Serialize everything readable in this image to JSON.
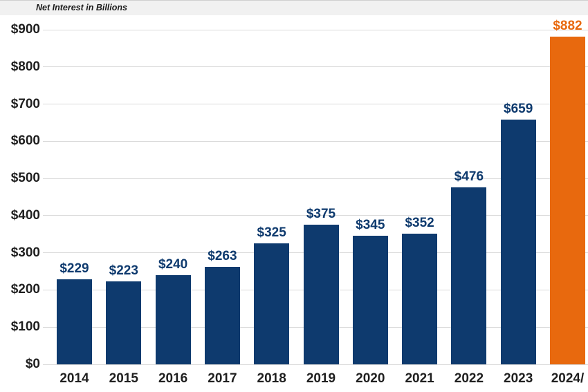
{
  "chart": {
    "title": "Net Interest in Billions"
  },
  "chart_data": {
    "type": "bar",
    "title": "Net Interest in Billions",
    "categories": [
      "2014",
      "2015",
      "2016",
      "2017",
      "2018",
      "2019",
      "2020",
      "2021",
      "2022",
      "2023",
      "2024/"
    ],
    "values": [
      229,
      223,
      240,
      263,
      325,
      375,
      345,
      352,
      476,
      659,
      882
    ],
    "value_labels": [
      "$229",
      "$223",
      "$240",
      "$263",
      "$325",
      "$375",
      "$345",
      "$352",
      "$476",
      "$659",
      "$882"
    ],
    "xlabel": "",
    "ylabel": "",
    "ylim": [
      0,
      900
    ],
    "ytick_step": 100,
    "ytick_labels": [
      "$0",
      "$100",
      "$200",
      "$300",
      "$400",
      "$500",
      "$600",
      "$700",
      "$800",
      "$900"
    ],
    "grid": true,
    "legend": false,
    "highlight_index": 10,
    "colors": {
      "bar_default": "#0e3a6e",
      "bar_highlight": "#e8690e",
      "value_label_default": "#0e3a6e",
      "value_label_highlight": "#e8690e",
      "gridline": "#d9d9d9",
      "axis_text": "#1f1f1f",
      "title_bar_bg": "#f1f1f1"
    }
  }
}
